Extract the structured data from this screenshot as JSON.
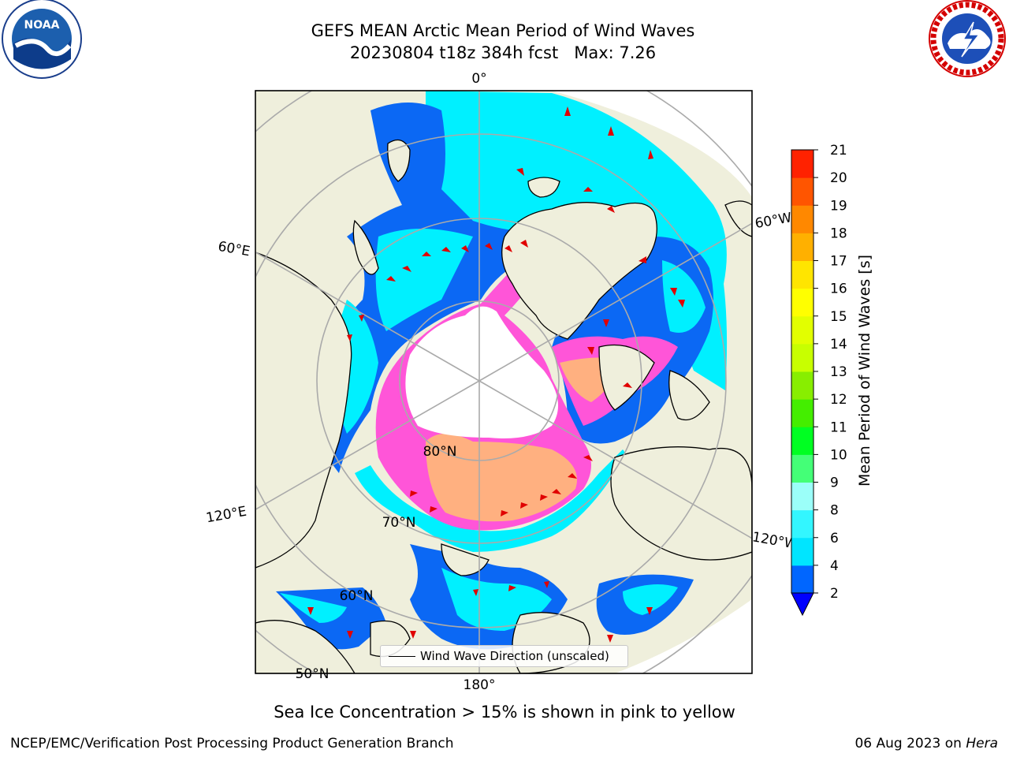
{
  "header": {
    "title": "GEFS MEAN Arctic Mean Period of Wind Waves",
    "subtitle": "20230804 t18z 384h fcst   Max: 7.26"
  },
  "logos": {
    "noaa": {
      "text": "NOAA"
    },
    "nws": {
      "text": "NATIONAL WEATHER SERVICE"
    }
  },
  "map": {
    "projection": "north-polar-stereographic",
    "meridian_labels": [
      "0°",
      "60°E",
      "120°E",
      "180°",
      "120°W",
      "60°W"
    ],
    "parallel_labels": [
      "80°N",
      "70°N",
      "60°N",
      "50°N"
    ],
    "colors": {
      "land": "#efefdc",
      "ice_pole": "#ffffff",
      "ocean_low": "#0b68f4",
      "ocean_mid": "#00f0ff",
      "ice_pink": "#ff55d8",
      "ice_peach": "#ffb080",
      "arrow": "#e00000"
    }
  },
  "legend": {
    "label": "Wind Wave Direction (unscaled)"
  },
  "colorbar": {
    "title": "Mean Period of Wind Waves [s]",
    "ticks": [
      "2",
      "4",
      "6",
      "8",
      "9",
      "10",
      "11",
      "12",
      "13",
      "14",
      "15",
      "16",
      "17",
      "18",
      "19",
      "20",
      "21"
    ],
    "colors": [
      "#0066ff",
      "#00e5ff",
      "#33f6ff",
      "#9bfff9",
      "#44ff77",
      "#00ff22",
      "#44ee00",
      "#88ee00",
      "#c8ff00",
      "#e2ff00",
      "#ffff00",
      "#ffe500",
      "#ffb000",
      "#ff8800",
      "#ff5500",
      "#ff2200",
      "#ff0000"
    ],
    "under_color": "#0000ff"
  },
  "caption": "Sea Ice Concentration > 15% is shown in pink to yellow",
  "footer": {
    "left": "NCEP/EMC/Verification Post Processing Product Generation Branch",
    "right_date": "06 Aug 2023 on ",
    "right_machine": "Hera"
  }
}
